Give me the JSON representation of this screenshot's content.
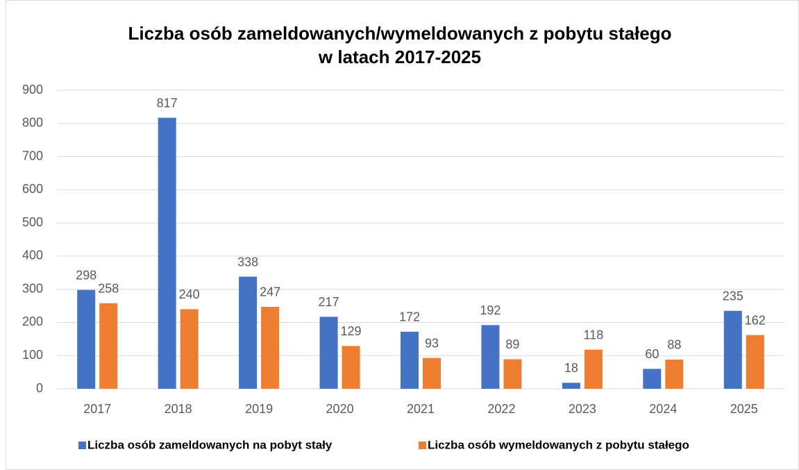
{
  "chart_data": {
    "type": "bar",
    "title": [
      "Liczba osób zameldowanych/wymeldowanych z pobytu stałego",
      "w latach 2017-2025"
    ],
    "categories": [
      "2017",
      "2018",
      "2019",
      "2020",
      "2021",
      "2022",
      "2023",
      "2024",
      "2025"
    ],
    "series": [
      {
        "name": "Liczba osób zameldowanych na pobyt stały",
        "color": "#4472c4",
        "values": [
          298,
          817,
          338,
          217,
          172,
          192,
          18,
          60,
          235
        ]
      },
      {
        "name": "Liczba osób wymeldowanych z pobytu stałego",
        "color": "#ed7d31",
        "values": [
          258,
          240,
          247,
          129,
          93,
          89,
          118,
          88,
          162
        ]
      }
    ],
    "ylim": [
      0,
      900
    ],
    "yticks": [
      0,
      100,
      200,
      300,
      400,
      500,
      600,
      700,
      800,
      900
    ],
    "grid": true,
    "legend": "bottom"
  }
}
